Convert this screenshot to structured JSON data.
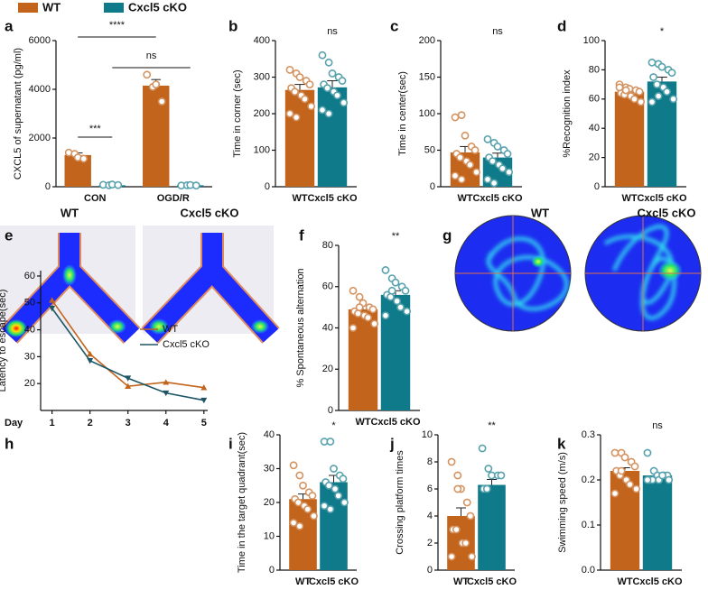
{
  "chart_data": [
    {
      "type": "bar",
      "panel": "a",
      "ylabel": "CXCL5 of supernatant (pg/ml)",
      "categories": [
        "CON",
        "OGD/R"
      ],
      "series": [
        {
          "name": "WT",
          "color": "#c2641c",
          "values": [
            1300,
            4150
          ],
          "errors": [
            90,
            250
          ],
          "points": [
            [
              1400,
              1350,
              1200,
              1150
            ],
            [
              4600,
              4100,
              4200,
              3500
            ]
          ]
        },
        {
          "name": "Cxcl5 cKO",
          "color": "#0f7a8a",
          "values": [
            60,
            60
          ],
          "errors": [
            10,
            10
          ],
          "points": [
            [
              80,
              60,
              90,
              70
            ],
            [
              50,
              60,
              70,
              50
            ]
          ]
        }
      ],
      "ylim": [
        0,
        6000
      ],
      "yticks": [
        0,
        2000,
        4000,
        6000
      ],
      "annotations": [
        "***",
        "****",
        "ns"
      ]
    },
    {
      "type": "bar",
      "panel": "b",
      "ylabel": "Time in corner (sec)",
      "categories": [
        "WT",
        "Cxcl5 cKO"
      ],
      "colors": [
        "#c2641c",
        "#0f7a8a"
      ],
      "values": [
        265,
        272
      ],
      "errors": [
        15,
        18
      ],
      "points": [
        [
          320,
          310,
          300,
          290,
          280,
          270,
          260,
          250,
          240,
          220,
          200,
          190
        ],
        [
          360,
          340,
          310,
          300,
          290,
          280,
          270,
          260,
          250,
          230,
          210,
          200
        ]
      ],
      "ylim": [
        0,
        400
      ],
      "yticks": [
        0,
        100,
        200,
        300,
        400
      ],
      "sig": "ns"
    },
    {
      "type": "bar",
      "panel": "c",
      "ylabel": "Time in center(sec)",
      "categories": [
        "WT",
        "Cxcl5 cKO"
      ],
      "colors": [
        "#c2641c",
        "#0f7a8a"
      ],
      "values": [
        47,
        40
      ],
      "errors": [
        8,
        6
      ],
      "points": [
        [
          95,
          98,
          70,
          55,
          50,
          45,
          40,
          35,
          30,
          20,
          15,
          10
        ],
        [
          65,
          60,
          55,
          50,
          45,
          40,
          35,
          30,
          25,
          20,
          10,
          5
        ]
      ],
      "ylim": [
        0,
        200
      ],
      "yticks": [
        0,
        50,
        100,
        150,
        200
      ],
      "sig": "ns"
    },
    {
      "type": "bar",
      "panel": "d",
      "ylabel": "%Recognition index",
      "categories": [
        "WT",
        "Cxcl5 cKO"
      ],
      "colors": [
        "#c2641c",
        "#0f7a8a"
      ],
      "values": [
        65,
        72
      ],
      "errors": [
        2,
        3
      ],
      "points": [
        [
          70,
          68,
          67,
          66,
          65,
          64,
          63,
          62,
          60,
          58,
          68,
          66
        ],
        [
          85,
          84,
          82,
          80,
          78,
          75,
          70,
          68,
          65,
          60,
          58,
          62
        ]
      ],
      "ylim": [
        0,
        100
      ],
      "yticks": [
        0,
        20,
        40,
        60,
        80,
        100
      ],
      "sig": "*"
    },
    {
      "type": "image",
      "panel": "e",
      "titles": [
        "WT",
        "Cxcl5 cKO"
      ]
    },
    {
      "type": "bar",
      "panel": "f",
      "ylabel": "% Spontaneous alternation",
      "categories": [
        "WT",
        "Cxcl5 cKO"
      ],
      "colors": [
        "#c2641c",
        "#0f7a8a"
      ],
      "values": [
        49,
        56
      ],
      "errors": [
        1.8,
        2
      ],
      "points": [
        [
          58,
          55,
          52,
          50,
          49,
          48,
          47,
          46,
          45,
          42,
          40,
          50
        ],
        [
          68,
          64,
          62,
          60,
          58,
          56,
          55,
          53,
          50,
          48,
          46,
          58
        ]
      ],
      "ylim": [
        0,
        80
      ],
      "yticks": [
        0,
        20,
        40,
        60,
        80
      ],
      "sig": "**"
    },
    {
      "type": "image",
      "panel": "g",
      "titles": [
        "WT",
        "Cxcl5 cKO"
      ]
    },
    {
      "type": "line",
      "panel": "h",
      "ylabel": "Latency to escape(sec)",
      "xlabel": "Day",
      "x": [
        1,
        2,
        3,
        4,
        5
      ],
      "series": [
        {
          "name": "WT",
          "color": "#c2641c",
          "values": [
            51,
            31,
            19,
            20.5,
            18.5
          ]
        },
        {
          "name": "Cxcl5 cKO",
          "color": "#1d5565",
          "values": [
            48,
            28.5,
            22,
            16.5,
            13.8
          ]
        }
      ],
      "xlim": [
        0.7,
        5.1
      ],
      "xticks": [
        1,
        2,
        3,
        4,
        5
      ],
      "ylim": [
        10,
        62
      ],
      "yticks": [
        20,
        30,
        40,
        50,
        60
      ],
      "legend": "right"
    },
    {
      "type": "bar",
      "panel": "i",
      "ylabel": "Time in the target quadrant(sec)",
      "categories": [
        "WT",
        "Cxcl5 cKO"
      ],
      "colors": [
        "#c2641c",
        "#0f7a8a"
      ],
      "values": [
        21,
        26
      ],
      "errors": [
        1.5,
        2
      ],
      "points": [
        [
          31,
          28,
          25,
          23,
          22,
          21,
          20,
          19,
          18,
          16,
          14,
          13
        ],
        [
          38,
          38,
          30,
          28,
          27,
          26,
          25,
          24,
          22,
          20,
          19,
          18
        ]
      ],
      "ylim": [
        0,
        40
      ],
      "yticks": [
        0,
        10,
        20,
        30,
        40
      ],
      "sig": "*"
    },
    {
      "type": "bar",
      "panel": "j",
      "ylabel": "Crossing platform times",
      "categories": [
        "WT",
        "Cxcl5 cKO"
      ],
      "colors": [
        "#c2641c",
        "#0f7a8a"
      ],
      "values": [
        4,
        6.3
      ],
      "errors": [
        0.6,
        0.4
      ],
      "points": [
        [
          8,
          7,
          6,
          5,
          4,
          3,
          3,
          2,
          2,
          1,
          1,
          6
        ],
        [
          9,
          7.5,
          7,
          7,
          7,
          6,
          6
        ]
      ],
      "ylim": [
        0,
        10
      ],
      "yticks": [
        0,
        2,
        4,
        6,
        8,
        10
      ],
      "sig": "**"
    },
    {
      "type": "bar",
      "panel": "k",
      "ylabel": "Swimming speed (m/s)",
      "categories": [
        "WT",
        "Cxcl5 cKO"
      ],
      "colors": [
        "#c2641c",
        "#0f7a8a"
      ],
      "values": [
        0.22,
        0.21
      ],
      "errors": [
        0.007,
        0.005
      ],
      "points": [
        [
          0.26,
          0.26,
          0.25,
          0.24,
          0.23,
          0.22,
          0.21,
          0.2,
          0.19,
          0.18,
          0.17,
          0.22
        ],
        [
          0.26,
          0.22,
          0.21,
          0.21,
          0.21,
          0.2,
          0.2,
          0.2,
          0.21,
          0.2,
          0.2
        ]
      ],
      "ylim": [
        0,
        0.3
      ],
      "yticks": [
        {
          "value": 0,
          "label": "0.0"
        },
        0.1,
        0.2,
        0.3
      ],
      "sig": "ns"
    }
  ]
}
